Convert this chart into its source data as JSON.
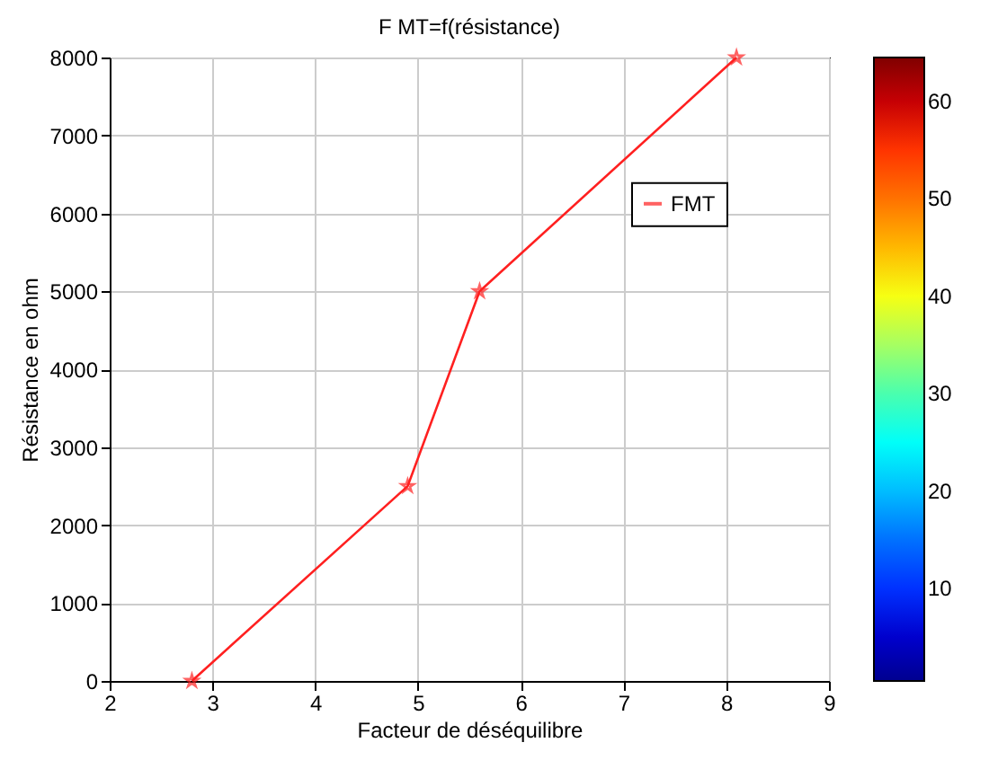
{
  "chart_data": {
    "type": "line",
    "title": "F MT=f(résistance)",
    "xlabel": "Facteur de déséquilibre",
    "ylabel": "Résistance en ohm",
    "x": [
      2.8,
      4.9,
      5.6,
      8.1
    ],
    "series": [
      {
        "name": "FMT",
        "color": "#ff2020",
        "values": [
          0,
          2500,
          5000,
          8000
        ]
      }
    ],
    "xlim": [
      2,
      9
    ],
    "xticks": [
      2,
      3,
      4,
      5,
      6,
      7,
      8,
      9
    ],
    "ylim": [
      0,
      8000
    ],
    "yticks": [
      0,
      1000,
      2000,
      3000,
      4000,
      5000,
      6000,
      7000,
      8000
    ],
    "clim": [
      0.5,
      64.5
    ],
    "cticks": [
      10,
      20,
      30,
      40,
      50,
      60
    ],
    "grid": true,
    "legend": "right",
    "marker": "star",
    "line_style": "solid"
  }
}
